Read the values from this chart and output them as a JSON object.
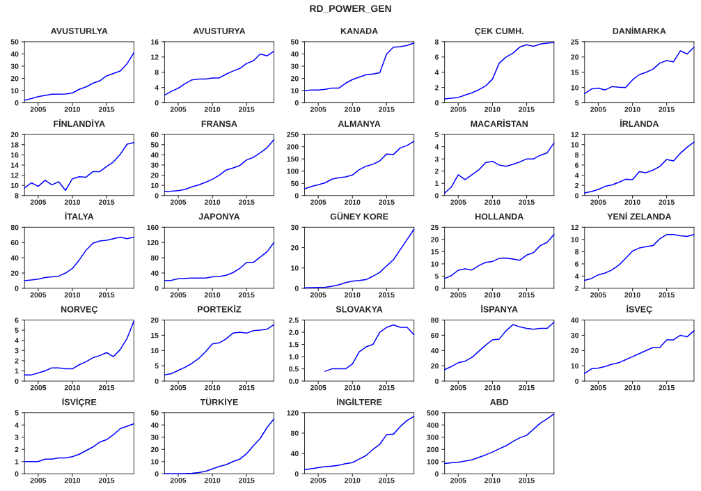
{
  "chart_data": [
    {
      "type": "line",
      "title": "AVUSTURLYA",
      "annotations": [
        "RD_POWER_GEN"
      ],
      "x": [
        2003,
        2004,
        2005,
        2006,
        2007,
        2008,
        2009,
        2010,
        2011,
        2012,
        2013,
        2014,
        2015,
        2016,
        2017,
        2018,
        2019
      ],
      "series": [
        {
          "color": "#0000ff",
          "values": [
            2,
            3.5,
            5,
            6,
            7,
            7,
            7.2,
            8,
            11,
            13,
            16,
            18,
            22,
            24,
            26,
            32,
            41
          ]
        }
      ],
      "xlim": [
        2003,
        2019
      ],
      "xticks": [
        2005,
        2010,
        2015
      ],
      "ylim": [
        0,
        50
      ],
      "yticks": [
        0,
        10,
        20,
        30,
        40,
        50
      ]
    },
    {
      "type": "line",
      "title": "AVUSTURYA",
      "x": [
        2003,
        2004,
        2005,
        2006,
        2007,
        2008,
        2009,
        2010,
        2011,
        2012,
        2013,
        2014,
        2015,
        2016,
        2017,
        2018,
        2019
      ],
      "series": [
        {
          "color": "#0000ff",
          "values": [
            2,
            3,
            3.8,
            5,
            6,
            6.2,
            6.2,
            6.5,
            6.5,
            7.5,
            8.3,
            9,
            10.3,
            11,
            12.8,
            12.3,
            13.5
          ]
        }
      ],
      "xlim": [
        2003,
        2019
      ],
      "xticks": [
        2005,
        2010,
        2015
      ],
      "ylim": [
        0,
        16
      ],
      "yticks": [
        0,
        4,
        8,
        12,
        16
      ]
    },
    {
      "type": "line",
      "title": "KANADA",
      "x": [
        2003,
        2004,
        2005,
        2006,
        2007,
        2008,
        2009,
        2010,
        2011,
        2012,
        2013,
        2014,
        2015,
        2016,
        2017,
        2018,
        2019
      ],
      "series": [
        {
          "color": "#0000ff",
          "values": [
            10,
            10.5,
            10.5,
            11,
            12,
            12,
            16,
            19,
            21,
            23,
            23.5,
            24.5,
            40,
            45.5,
            46,
            47,
            49
          ]
        }
      ],
      "xlim": [
        2003,
        2019
      ],
      "xticks": [
        2005,
        2010,
        2015
      ],
      "ylim": [
        0,
        50
      ],
      "yticks": [
        0,
        10,
        20,
        30,
        40,
        50
      ]
    },
    {
      "type": "line",
      "title": "ÇEK CUMH.",
      "x": [
        2003,
        2004,
        2005,
        2006,
        2007,
        2008,
        2009,
        2010,
        2011,
        2012,
        2013,
        2014,
        2015,
        2016,
        2017,
        2018,
        2019
      ],
      "series": [
        {
          "color": "#0000ff",
          "values": [
            0.5,
            0.6,
            0.7,
            1,
            1.3,
            1.7,
            2.2,
            3.1,
            5.2,
            6,
            6.5,
            7.3,
            7.6,
            7.4,
            7.7,
            7.8,
            7.9
          ]
        }
      ],
      "xlim": [
        2003,
        2019
      ],
      "xticks": [
        2005,
        2010,
        2015
      ],
      "ylim": [
        0,
        8
      ],
      "yticks": [
        0,
        2,
        4,
        6,
        8
      ]
    },
    {
      "type": "line",
      "title": "DANİMARKA",
      "x": [
        2003,
        2004,
        2005,
        2006,
        2007,
        2008,
        2009,
        2010,
        2011,
        2012,
        2013,
        2014,
        2015,
        2016,
        2017,
        2018,
        2019
      ],
      "series": [
        {
          "color": "#0000ff",
          "values": [
            8,
            9.5,
            9.8,
            9.2,
            10.3,
            10.1,
            10,
            12.5,
            14.2,
            15,
            16,
            18,
            18.8,
            18.4,
            22,
            21,
            23.2
          ]
        }
      ],
      "xlim": [
        2003,
        2019
      ],
      "xticks": [
        2005,
        2010,
        2015
      ],
      "ylim": [
        5,
        25
      ],
      "yticks": [
        5,
        10,
        15,
        20,
        25
      ]
    },
    {
      "type": "line",
      "title": "FİNLANDİYA",
      "x": [
        2003,
        2004,
        2005,
        2006,
        2007,
        2008,
        2009,
        2010,
        2011,
        2012,
        2013,
        2014,
        2015,
        2016,
        2017,
        2018,
        2019
      ],
      "series": [
        {
          "color": "#0000ff",
          "values": [
            9.5,
            10.5,
            9.8,
            11,
            10.1,
            10.7,
            9,
            11.3,
            11.7,
            11.6,
            12.7,
            12.7,
            13.7,
            14.6,
            16.1,
            18.1,
            18.4
          ]
        }
      ],
      "xlim": [
        2003,
        2019
      ],
      "xticks": [
        2005,
        2010,
        2015
      ],
      "ylim": [
        8,
        20
      ],
      "yticks": [
        8,
        10,
        12,
        14,
        16,
        18,
        20
      ]
    },
    {
      "type": "line",
      "title": "FRANSA",
      "x": [
        2003,
        2004,
        2005,
        2006,
        2007,
        2008,
        2009,
        2010,
        2011,
        2012,
        2013,
        2014,
        2015,
        2016,
        2017,
        2018,
        2019
      ],
      "series": [
        {
          "color": "#0000ff",
          "values": [
            4,
            4.3,
            4.8,
            6,
            8.5,
            10.5,
            13,
            16,
            20,
            25,
            27,
            29.5,
            35,
            37.5,
            42,
            47,
            55
          ]
        }
      ],
      "xlim": [
        2003,
        2019
      ],
      "xticks": [
        2005,
        2010,
        2015
      ],
      "ylim": [
        0,
        60
      ],
      "yticks": [
        0,
        10,
        20,
        30,
        40,
        50,
        60
      ]
    },
    {
      "type": "line",
      "title": "ALMANYA",
      "x": [
        2003,
        2004,
        2005,
        2006,
        2007,
        2008,
        2009,
        2010,
        2011,
        2012,
        2013,
        2014,
        2015,
        2016,
        2017,
        2018,
        2019
      ],
      "series": [
        {
          "color": "#0000ff",
          "values": [
            28,
            37,
            44,
            52,
            67,
            73,
            76,
            84,
            106,
            120,
            128,
            142,
            170,
            168,
            195,
            205,
            222
          ]
        }
      ],
      "xlim": [
        2003,
        2019
      ],
      "xticks": [
        2005,
        2010,
        2015
      ],
      "ylim": [
        0,
        250
      ],
      "yticks": [
        0,
        50,
        100,
        150,
        200,
        250
      ]
    },
    {
      "type": "line",
      "title": "MACARİSTAN",
      "x": [
        2003,
        2004,
        2005,
        2006,
        2007,
        2008,
        2009,
        2010,
        2011,
        2012,
        2013,
        2014,
        2015,
        2016,
        2017,
        2018,
        2019
      ],
      "series": [
        {
          "color": "#0000ff",
          "values": [
            0.2,
            0.7,
            1.7,
            1.3,
            1.7,
            2.1,
            2.7,
            2.8,
            2.5,
            2.4,
            2.55,
            2.75,
            3.0,
            3.0,
            3.3,
            3.5,
            4.3
          ]
        }
      ],
      "xlim": [
        2003,
        2019
      ],
      "xticks": [
        2005,
        2010,
        2015
      ],
      "ylim": [
        0,
        5
      ],
      "yticks": [
        0,
        1,
        2,
        3,
        4,
        5
      ]
    },
    {
      "type": "line",
      "title": "İRLANDA",
      "x": [
        2003,
        2004,
        2005,
        2006,
        2007,
        2008,
        2009,
        2010,
        2011,
        2012,
        2013,
        2014,
        2015,
        2016,
        2017,
        2018,
        2019
      ],
      "series": [
        {
          "color": "#0000ff",
          "values": [
            0.5,
            0.8,
            1.2,
            1.8,
            2.1,
            2.6,
            3.2,
            3.1,
            4.7,
            4.5,
            5,
            5.7,
            7.1,
            6.8,
            8.3,
            9.5,
            10.5
          ]
        }
      ],
      "xlim": [
        2003,
        2019
      ],
      "xticks": [
        2005,
        2010,
        2015
      ],
      "ylim": [
        0,
        12
      ],
      "yticks": [
        0,
        2,
        4,
        6,
        8,
        10,
        12
      ]
    },
    {
      "type": "line",
      "title": "İTALYA",
      "x": [
        2003,
        2004,
        2005,
        2006,
        2007,
        2008,
        2009,
        2010,
        2011,
        2012,
        2013,
        2014,
        2015,
        2016,
        2017,
        2018,
        2019
      ],
      "series": [
        {
          "color": "#0000ff",
          "values": [
            10,
            11,
            12,
            14,
            15,
            16,
            20,
            26,
            37,
            50,
            59,
            62,
            63,
            65,
            67,
            65,
            67
          ]
        }
      ],
      "xlim": [
        2003,
        2019
      ],
      "xticks": [
        2005,
        2010,
        2015
      ],
      "ylim": [
        0,
        80
      ],
      "yticks": [
        0,
        20,
        40,
        60,
        80
      ]
    },
    {
      "type": "line",
      "title": "JAPONYA",
      "x": [
        2003,
        2004,
        2005,
        2006,
        2007,
        2008,
        2009,
        2010,
        2011,
        2012,
        2013,
        2014,
        2015,
        2016,
        2017,
        2018,
        2019
      ],
      "series": [
        {
          "color": "#0000ff",
          "values": [
            20,
            21,
            25,
            26,
            27,
            27,
            27,
            30,
            31,
            34,
            41,
            52,
            68,
            68,
            82,
            96,
            120
          ]
        }
      ],
      "xlim": [
        2003,
        2019
      ],
      "xticks": [
        2005,
        2010,
        2015
      ],
      "ylim": [
        0,
        160
      ],
      "yticks": [
        0,
        40,
        80,
        120,
        160
      ]
    },
    {
      "type": "line",
      "title": "GÜNEY KORE",
      "x": [
        2003,
        2004,
        2005,
        2006,
        2007,
        2008,
        2009,
        2010,
        2011,
        2012,
        2013,
        2014,
        2015,
        2016,
        2017,
        2018,
        2019
      ],
      "series": [
        {
          "color": "#0000ff",
          "values": [
            0.2,
            0.3,
            0.4,
            0.5,
            1,
            1.7,
            2.8,
            3.5,
            3.8,
            4.3,
            5.9,
            7.8,
            11,
            14,
            19,
            24,
            29
          ]
        }
      ],
      "xlim": [
        2003,
        2019
      ],
      "xticks": [
        2005,
        2010,
        2015
      ],
      "ylim": [
        0,
        30
      ],
      "yticks": [
        0,
        10,
        20,
        30
      ]
    },
    {
      "type": "line",
      "title": "HOLLANDA",
      "x": [
        2003,
        2004,
        2005,
        2006,
        2007,
        2008,
        2009,
        2010,
        2011,
        2012,
        2013,
        2014,
        2015,
        2016,
        2017,
        2018,
        2019
      ],
      "series": [
        {
          "color": "#0000ff",
          "values": [
            4,
            5.2,
            7.4,
            8,
            7.5,
            9.3,
            10.6,
            11,
            12.3,
            12.4,
            12,
            11.5,
            13.6,
            14.6,
            17.5,
            18.8,
            22
          ]
        }
      ],
      "xlim": [
        2003,
        2019
      ],
      "xticks": [
        2005,
        2010,
        2015
      ],
      "ylim": [
        0,
        25
      ],
      "yticks": [
        0,
        5,
        10,
        15,
        20,
        25
      ]
    },
    {
      "type": "line",
      "title": "YENİ ZELANDA",
      "x": [
        2003,
        2004,
        2005,
        2006,
        2007,
        2008,
        2009,
        2010,
        2011,
        2012,
        2013,
        2014,
        2015,
        2016,
        2017,
        2018,
        2019
      ],
      "series": [
        {
          "color": "#0000ff",
          "values": [
            3.3,
            3.6,
            4.2,
            4.5,
            5,
            5.8,
            6.9,
            8.1,
            8.6,
            8.8,
            9,
            10.1,
            10.8,
            10.8,
            10.6,
            10.5,
            10.8
          ]
        }
      ],
      "xlim": [
        2003,
        2019
      ],
      "xticks": [
        2005,
        2010,
        2015
      ],
      "ylim": [
        2,
        12
      ],
      "yticks": [
        2,
        4,
        6,
        8,
        10,
        12
      ]
    },
    {
      "type": "line",
      "title": "NORVEÇ",
      "x": [
        2003,
        2004,
        2005,
        2006,
        2007,
        2008,
        2009,
        2010,
        2011,
        2012,
        2013,
        2014,
        2015,
        2016,
        2017,
        2018,
        2019
      ],
      "series": [
        {
          "color": "#0000ff",
          "values": [
            0.6,
            0.6,
            0.8,
            1,
            1.3,
            1.3,
            1.2,
            1.2,
            1.6,
            1.9,
            2.3,
            2.5,
            2.8,
            2.4,
            3.1,
            4.2,
            5.9
          ]
        }
      ],
      "xlim": [
        2003,
        2019
      ],
      "xticks": [
        2005,
        2010,
        2015
      ],
      "ylim": [
        0,
        6
      ],
      "yticks": [
        0,
        1,
        2,
        3,
        4,
        5,
        6
      ]
    },
    {
      "type": "line",
      "title": "PORTEKİZ",
      "x": [
        2003,
        2004,
        2005,
        2006,
        2007,
        2008,
        2009,
        2010,
        2011,
        2012,
        2013,
        2014,
        2015,
        2016,
        2017,
        2018,
        2019
      ],
      "series": [
        {
          "color": "#0000ff",
          "values": [
            2,
            2.4,
            3.5,
            4.5,
            5.8,
            7.4,
            9.6,
            12.2,
            12.5,
            13.8,
            15.7,
            16,
            15.7,
            16.5,
            16.7,
            17,
            18.5
          ]
        }
      ],
      "xlim": [
        2003,
        2019
      ],
      "xticks": [
        2005,
        2010,
        2015
      ],
      "ylim": [
        0,
        20
      ],
      "yticks": [
        0,
        5,
        10,
        15,
        20
      ]
    },
    {
      "type": "line",
      "title": "SLOVAKYA",
      "series": [
        {
          "color": "#0000ff",
          "x": [
            2006,
            2007,
            2008,
            2009,
            2010,
            2011,
            2012,
            2013,
            2014,
            2015,
            2016,
            2017,
            2018,
            2019
          ],
          "values": [
            0.4,
            0.5,
            0.5,
            0.5,
            0.7,
            1.2,
            1.4,
            1.5,
            2.0,
            2.2,
            2.3,
            2.2,
            2.2,
            1.9
          ]
        }
      ],
      "xlim": [
        2003,
        2019
      ],
      "xticks": [
        2005,
        2010,
        2015
      ],
      "ylim": [
        0,
        2.5
      ],
      "yticks": [
        {
          "value": 0,
          "label": "0.0"
        },
        {
          "value": 0.5,
          "label": "0.5"
        },
        {
          "value": 1,
          "label": "1.0"
        },
        {
          "value": 1.5,
          "label": "1.5"
        },
        {
          "value": 2,
          "label": "2.0"
        },
        {
          "value": 2.5,
          "label": "2.5"
        }
      ]
    },
    {
      "type": "line",
      "title": "İSPANYA",
      "x": [
        2003,
        2004,
        2005,
        2006,
        2007,
        2008,
        2009,
        2010,
        2011,
        2012,
        2013,
        2014,
        2015,
        2016,
        2017,
        2018,
        2019
      ],
      "series": [
        {
          "color": "#0000ff",
          "values": [
            15,
            19,
            24,
            26,
            31,
            39,
            47,
            54,
            55,
            66,
            74,
            71,
            69,
            68,
            69,
            69,
            77
          ]
        }
      ],
      "xlim": [
        2003,
        2019
      ],
      "xticks": [
        2005,
        2010,
        2015
      ],
      "ylim": [
        0,
        80
      ],
      "yticks": [
        0,
        20,
        40,
        60,
        80
      ]
    },
    {
      "type": "line",
      "title": "İSVEÇ",
      "x": [
        2003,
        2004,
        2005,
        2006,
        2007,
        2008,
        2009,
        2010,
        2011,
        2012,
        2013,
        2014,
        2015,
        2016,
        2017,
        2018,
        2019
      ],
      "series": [
        {
          "color": "#0000ff",
          "values": [
            5,
            8,
            8.5,
            9.5,
            11,
            12,
            14,
            16,
            18,
            20,
            22,
            22,
            27,
            27,
            30,
            29,
            33
          ]
        }
      ],
      "xlim": [
        2003,
        2019
      ],
      "xticks": [
        2005,
        2010,
        2015
      ],
      "ylim": [
        0,
        40
      ],
      "yticks": [
        0,
        10,
        20,
        30,
        40
      ]
    },
    {
      "type": "line",
      "title": "İSVİÇRE",
      "x": [
        2003,
        2004,
        2005,
        2006,
        2007,
        2008,
        2009,
        2010,
        2011,
        2012,
        2013,
        2014,
        2015,
        2016,
        2017,
        2018,
        2019
      ],
      "series": [
        {
          "color": "#0000ff",
          "values": [
            1,
            1,
            1,
            1.2,
            1.2,
            1.3,
            1.3,
            1.4,
            1.6,
            1.9,
            2.2,
            2.6,
            2.8,
            3.2,
            3.7,
            3.9,
            4.1
          ]
        }
      ],
      "xlim": [
        2003,
        2019
      ],
      "xticks": [
        2005,
        2010,
        2015
      ],
      "ylim": [
        0,
        5
      ],
      "yticks": [
        0,
        1,
        2,
        3,
        4,
        5
      ]
    },
    {
      "type": "line",
      "title": "TÜRKİYE",
      "x": [
        2003,
        2004,
        2005,
        2006,
        2007,
        2008,
        2009,
        2010,
        2011,
        2012,
        2013,
        2014,
        2015,
        2016,
        2017,
        2018,
        2019
      ],
      "series": [
        {
          "color": "#0000ff",
          "values": [
            0.1,
            0.1,
            0.1,
            0.2,
            0.4,
            1,
            2,
            4,
            6,
            7.5,
            10,
            12,
            16.5,
            23,
            29,
            38,
            45
          ]
        }
      ],
      "xlim": [
        2003,
        2019
      ],
      "xticks": [
        2005,
        2010,
        2015
      ],
      "ylim": [
        0,
        50
      ],
      "yticks": [
        0,
        10,
        20,
        30,
        40,
        50
      ]
    },
    {
      "type": "line",
      "title": "İNGİLTERE",
      "x": [
        2003,
        2004,
        2005,
        2006,
        2007,
        2008,
        2009,
        2010,
        2011,
        2012,
        2013,
        2014,
        2015,
        2016,
        2017,
        2018,
        2019
      ],
      "series": [
        {
          "color": "#0000ff",
          "values": [
            8,
            10,
            12,
            14,
            15,
            17,
            20,
            22,
            29,
            36,
            48,
            58,
            77,
            78,
            93,
            105,
            113
          ]
        }
      ],
      "xlim": [
        2003,
        2019
      ],
      "xticks": [
        2005,
        2010,
        2015
      ],
      "ylim": [
        0,
        120
      ],
      "yticks": [
        0,
        40,
        80,
        120
      ]
    },
    {
      "type": "line",
      "title": "ABD",
      "x": [
        2003,
        2004,
        2005,
        2006,
        2007,
        2008,
        2009,
        2010,
        2011,
        2012,
        2013,
        2014,
        2015,
        2016,
        2017,
        2018,
        2019
      ],
      "series": [
        {
          "color": "#0000ff",
          "values": [
            85,
            90,
            95,
            105,
            115,
            135,
            155,
            178,
            205,
            230,
            265,
            295,
            315,
            365,
            415,
            450,
            490
          ]
        }
      ],
      "xlim": [
        2003,
        2019
      ],
      "xticks": [
        2005,
        2010,
        2015
      ],
      "ylim": [
        0,
        500
      ],
      "yticks": [
        0,
        100,
        200,
        300,
        400,
        500
      ]
    }
  ]
}
